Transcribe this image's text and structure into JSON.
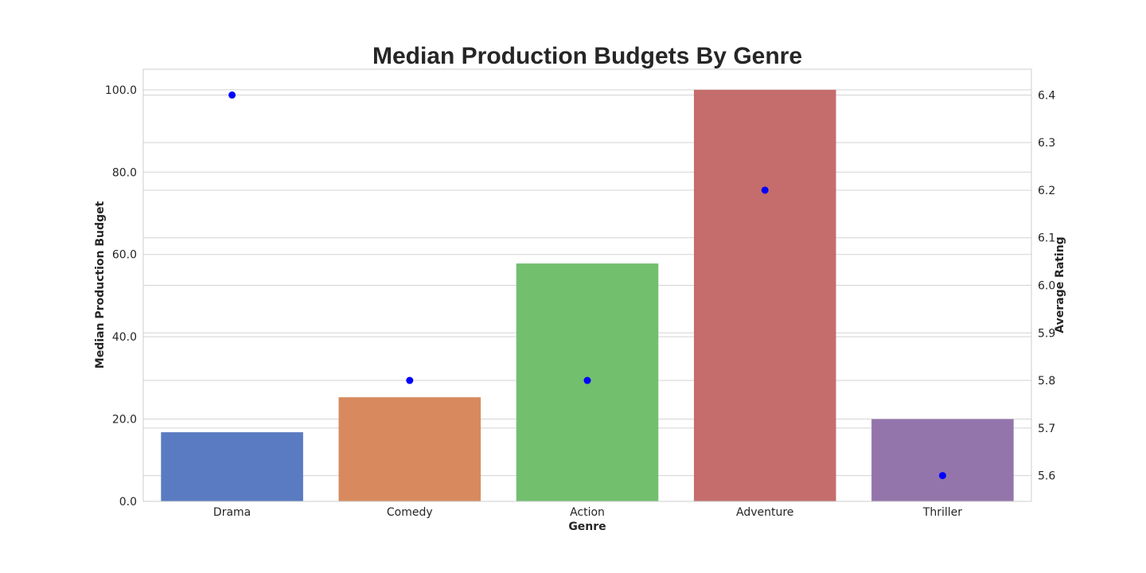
{
  "chart_data": {
    "type": "bar",
    "title": "Median Production Budgets By Genre",
    "xlabel": "Genre",
    "ylabel": "Median Production Budget",
    "y2label": "Average Rating",
    "categories": [
      "Drama",
      "Comedy",
      "Action",
      "Adventure",
      "Thriller"
    ],
    "series": [
      {
        "axis": "left",
        "kind": "bar",
        "values": [
          16.8,
          25.3,
          57.8,
          100.0,
          20.0
        ]
      },
      {
        "axis": "right",
        "kind": "scatter",
        "color": "#0000ff",
        "values": [
          6.4,
          5.8,
          5.8,
          6.2,
          5.6
        ]
      }
    ],
    "bar_colors": [
      "#5a7bc1",
      "#d88a5e",
      "#72bf6e",
      "#c56d6c",
      "#9475ab"
    ],
    "ylim": [
      0,
      105
    ],
    "yticks": [
      0,
      20,
      40,
      60,
      80,
      100
    ],
    "ytick_labels": [
      "0.0",
      "20.0",
      "40.0",
      "60.0",
      "80.0",
      "100.0"
    ],
    "y2lim": [
      5.5458,
      6.4542
    ],
    "y2ticks": [
      5.6,
      5.7,
      5.8,
      5.9,
      6.0,
      6.1,
      6.2,
      6.3,
      6.4
    ],
    "y2tick_labels": [
      "5.6",
      "5.7",
      "5.8",
      "5.9",
      "6.0",
      "6.1",
      "6.2",
      "6.3",
      "6.4"
    ],
    "grid": true
  }
}
